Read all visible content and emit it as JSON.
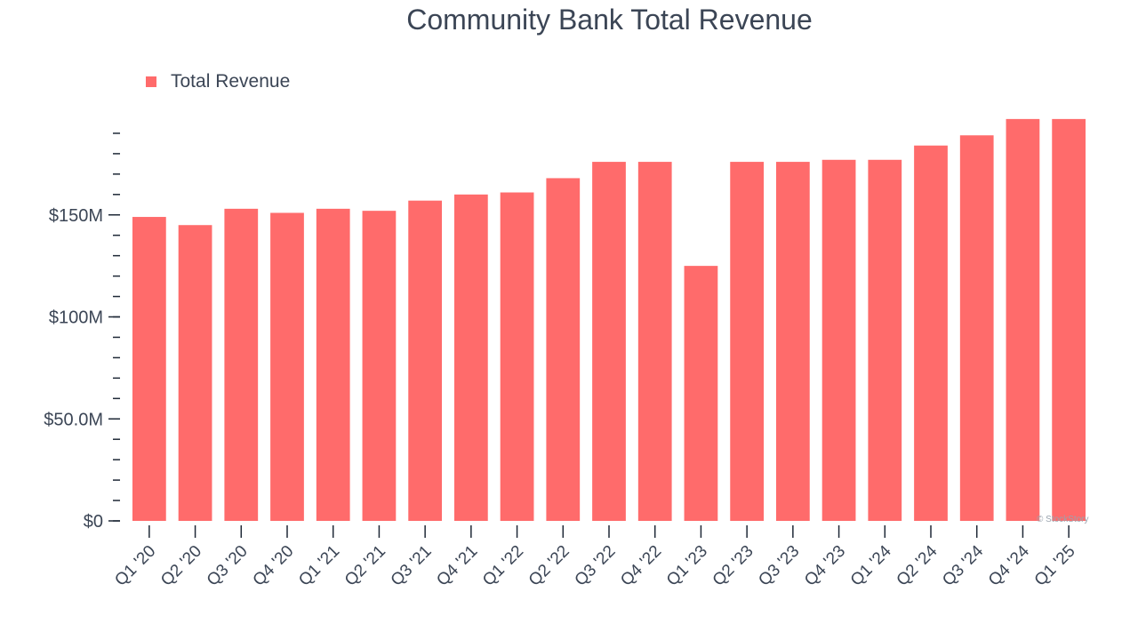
{
  "chart_data": {
    "type": "bar",
    "title": "Community Bank Total Revenue",
    "xlabel": "",
    "ylabel": "",
    "ylim": [
      0,
      200
    ],
    "yticks": [
      {
        "value": 0,
        "label": "$0"
      },
      {
        "value": 50,
        "label": "$50.0M"
      },
      {
        "value": 100,
        "label": "$100M"
      },
      {
        "value": 150,
        "label": "$150M"
      }
    ],
    "minor_tick_step": 10,
    "unit": "$M",
    "legend": {
      "position": "top-left"
    },
    "categories": [
      "Q1 '20",
      "Q2 '20",
      "Q3 '20",
      "Q4 '20",
      "Q1 '21",
      "Q2 '21",
      "Q3 '21",
      "Q4 '21",
      "Q1 '22",
      "Q2 '22",
      "Q3 '22",
      "Q4 '22",
      "Q1 '23",
      "Q2 '23",
      "Q3 '23",
      "Q4 '23",
      "Q1 '24",
      "Q2 '24",
      "Q3 '24",
      "Q4 '24",
      "Q1 '25"
    ],
    "series": [
      {
        "name": "Total Revenue",
        "color": "#ff6b6b",
        "values": [
          149,
          145,
          153,
          151,
          153,
          152,
          157,
          160,
          161,
          168,
          176,
          176,
          125,
          176,
          176,
          177,
          177,
          184,
          189,
          197,
          197
        ]
      }
    ]
  },
  "watermark": "© StockStory"
}
